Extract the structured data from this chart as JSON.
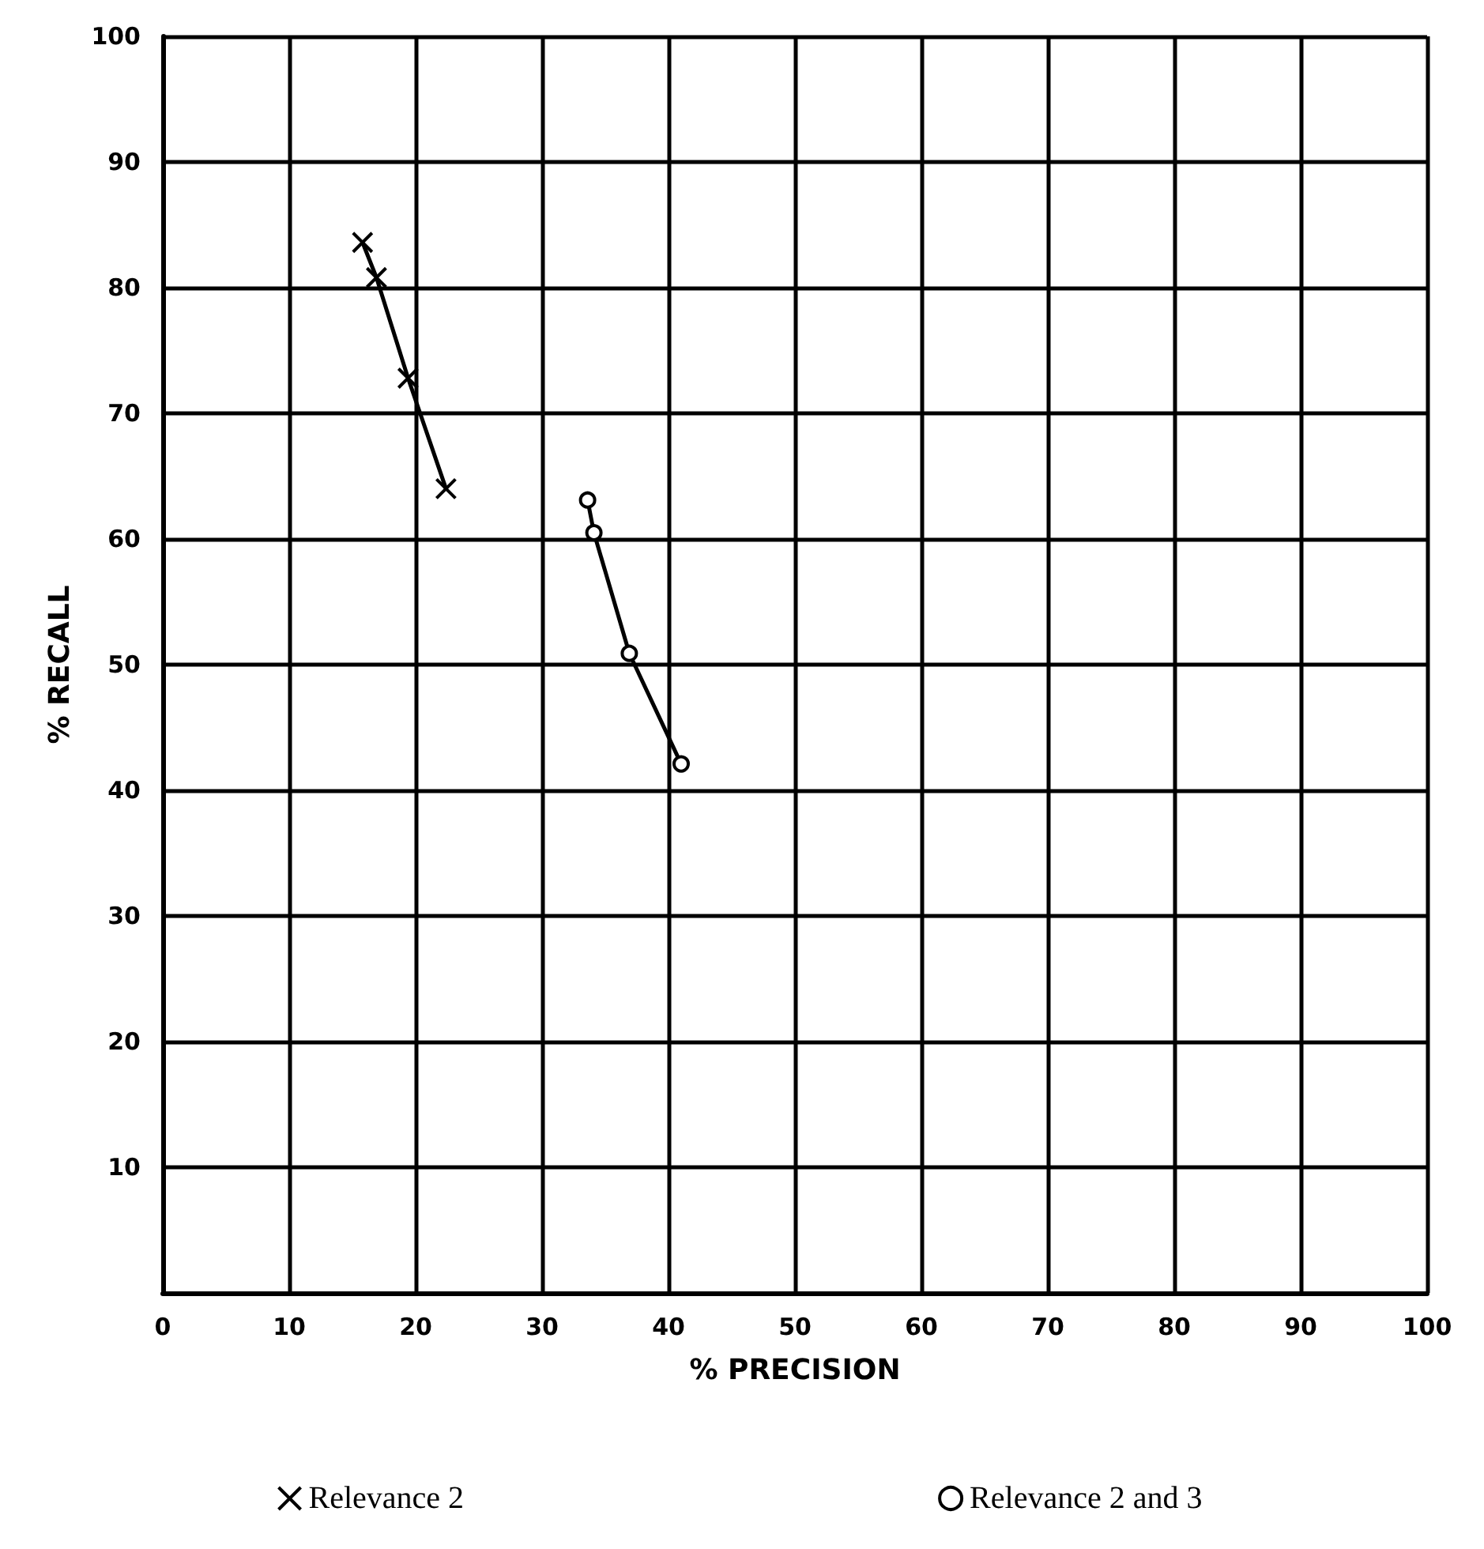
{
  "chart_data": {
    "type": "line",
    "xlabel": "% PRECISION",
    "ylabel": "% RECALL",
    "xlim": [
      0,
      100
    ],
    "ylim": [
      0,
      100
    ],
    "xticks": [
      0,
      10,
      20,
      30,
      40,
      50,
      60,
      70,
      80,
      90,
      100
    ],
    "yticks": [
      {
        "value": 0,
        "label": null
      },
      10,
      20,
      30,
      40,
      50,
      60,
      70,
      80,
      90,
      100
    ],
    "grid": true,
    "legend": "bottom",
    "series": [
      {
        "name": "Relevance 2",
        "color": "#000000",
        "marker": "cross",
        "x": [
          15.8,
          16.9,
          19.4,
          22.4
        ],
        "values": [
          83.6,
          80.8,
          72.8,
          64.0
        ]
      },
      {
        "name": "Relevance 2 and 3",
        "color": "#000000",
        "marker": "circle",
        "x": [
          33.6,
          34.1,
          36.9,
          41.0
        ],
        "values": [
          63.1,
          60.5,
          50.9,
          42.1
        ]
      }
    ]
  }
}
